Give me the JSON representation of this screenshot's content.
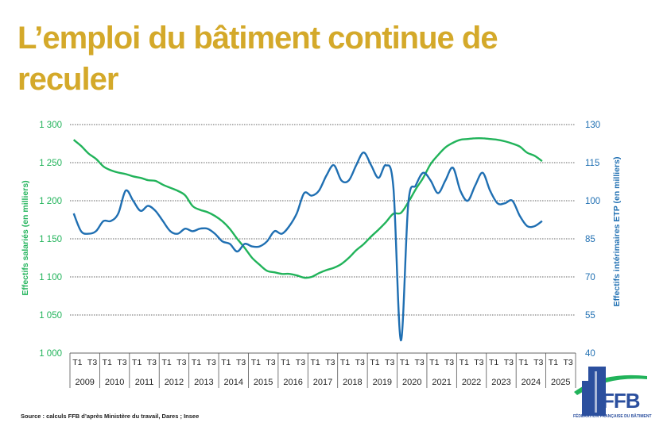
{
  "title": "L’emploi du bâtiment continue de reculer",
  "source": "Source : calculs FFB d’après Ministère du travail, Dares ; Insee",
  "logo": {
    "name": "FFB",
    "subtitle": "FÉDÉRATION FRANÇAISE DU BÂTIMENT"
  },
  "colors": {
    "title": "#d4a92a",
    "green": "#21b35a",
    "blue": "#1f6fb2",
    "logo_blue": "#2b4f9e"
  },
  "chart_data": {
    "type": "line",
    "categories_quarters": [
      "T1",
      "T3"
    ],
    "years": [
      "2009",
      "2010",
      "2011",
      "2012",
      "2013",
      "2014",
      "2015",
      "2016",
      "2017",
      "2018",
      "2019",
      "2020",
      "2021",
      "2022",
      "2023",
      "2024",
      "2025"
    ],
    "left_axis": {
      "label": "Effectifs salariés (en milliers)",
      "ylim": [
        1000,
        1300
      ],
      "ticks": [
        "1 000",
        "1 050",
        "1 100",
        "1 150",
        "1 200",
        "1 250",
        "1 300"
      ]
    },
    "right_axis": {
      "label": "Effectifs intérimaires ETP (en milliers)",
      "ylim": [
        40,
        130
      ],
      "ticks": [
        "40",
        "55",
        "70",
        "85",
        "100",
        "115",
        "130"
      ]
    },
    "grid": "horizontal dotted",
    "series": [
      {
        "axis": "left",
        "color": "#21b35a",
        "x": [
          2009.0,
          2009.25,
          2009.5,
          2009.75,
          2010.0,
          2010.25,
          2010.5,
          2010.75,
          2011.0,
          2011.25,
          2011.5,
          2011.75,
          2012.0,
          2012.25,
          2012.5,
          2012.75,
          2013.0,
          2013.25,
          2013.5,
          2013.75,
          2014.0,
          2014.25,
          2014.5,
          2014.75,
          2015.0,
          2015.25,
          2015.5,
          2015.75,
          2016.0,
          2016.25,
          2016.5,
          2016.75,
          2017.0,
          2017.25,
          2017.5,
          2017.75,
          2018.0,
          2018.25,
          2018.5,
          2018.75,
          2019.0,
          2019.25,
          2019.5,
          2019.75,
          2020.0,
          2020.25,
          2020.5,
          2020.75,
          2021.0,
          2021.25,
          2021.5,
          2021.75,
          2022.0,
          2022.25,
          2022.5,
          2022.75,
          2023.0,
          2023.25,
          2023.5,
          2023.75,
          2024.0,
          2024.25,
          2024.5,
          2024.75
        ],
        "values": [
          1280,
          1272,
          1262,
          1255,
          1245,
          1240,
          1237,
          1235,
          1232,
          1230,
          1227,
          1226,
          1221,
          1217,
          1213,
          1207,
          1193,
          1188,
          1185,
          1180,
          1173,
          1163,
          1150,
          1138,
          1125,
          1116,
          1108,
          1106,
          1104,
          1104,
          1102,
          1099,
          1100,
          1105,
          1109,
          1112,
          1117,
          1125,
          1135,
          1143,
          1153,
          1162,
          1172,
          1183,
          1184,
          1198,
          1215,
          1230,
          1248,
          1260,
          1270,
          1276,
          1280,
          1281,
          1282,
          1282,
          1281,
          1280,
          1278,
          1275,
          1271,
          1263,
          1259,
          1252
        ]
      },
      {
        "axis": "right",
        "color": "#1f6fb2",
        "x": [
          2009.0,
          2009.25,
          2009.5,
          2009.75,
          2010.0,
          2010.25,
          2010.5,
          2010.75,
          2011.0,
          2011.25,
          2011.5,
          2011.75,
          2012.0,
          2012.25,
          2012.5,
          2012.75,
          2013.0,
          2013.25,
          2013.5,
          2013.75,
          2014.0,
          2014.25,
          2014.5,
          2014.75,
          2015.0,
          2015.25,
          2015.5,
          2015.75,
          2016.0,
          2016.25,
          2016.5,
          2016.75,
          2017.0,
          2017.25,
          2017.5,
          2017.75,
          2018.0,
          2018.25,
          2018.5,
          2018.75,
          2019.0,
          2019.25,
          2019.5,
          2019.75,
          2020.0,
          2020.25,
          2020.5,
          2020.75,
          2021.0,
          2021.25,
          2021.5,
          2021.75,
          2022.0,
          2022.25,
          2022.5,
          2022.75,
          2023.0,
          2023.25,
          2023.5,
          2023.75,
          2024.0,
          2024.25,
          2024.5,
          2024.75
        ],
        "values": [
          95,
          88,
          87,
          88,
          92,
          92,
          95,
          104,
          100,
          96,
          98,
          96,
          92,
          88,
          87,
          89,
          88,
          89,
          89,
          87,
          84,
          83,
          80,
          83,
          82,
          82,
          84,
          88,
          87,
          90,
          95,
          103,
          102,
          104,
          110,
          114,
          108,
          108,
          114,
          119,
          114,
          109,
          114,
          105,
          45,
          99,
          106,
          111,
          108,
          103,
          108,
          113,
          104,
          100,
          106,
          111,
          104,
          99,
          99,
          100,
          94,
          90,
          90,
          92
        ]
      }
    ]
  }
}
